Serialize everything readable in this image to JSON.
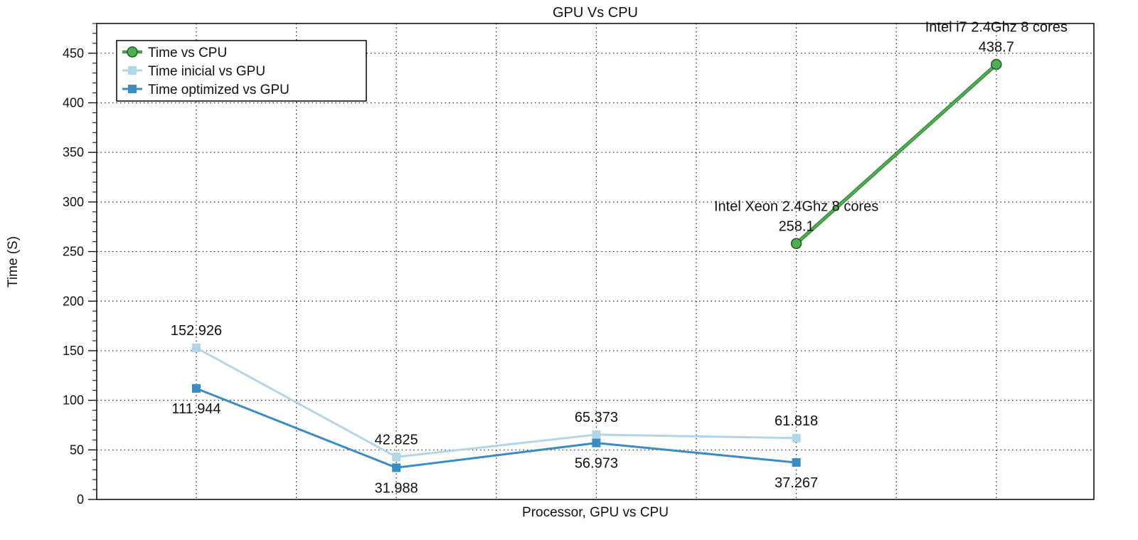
{
  "chart_data": {
    "type": "line",
    "title": "GPU Vs CPU",
    "xlabel": "Processor, GPU vs CPU",
    "ylabel": "Time (S)",
    "ylim": [
      0,
      480
    ],
    "y_ticks": [
      0,
      50,
      100,
      150,
      200,
      250,
      300,
      350,
      400,
      450
    ],
    "y_tick_labels": [
      "0",
      "50",
      "100",
      "150",
      "200",
      "250",
      "300",
      "350",
      "400",
      "450"
    ],
    "grid": true,
    "legend_position": "top-left",
    "x": [
      1,
      2,
      3,
      4,
      5
    ],
    "series": [
      {
        "name": "Time vs CPU",
        "color": "#4caf50",
        "marker": "circle",
        "points": [
          {
            "x": 4,
            "y": 258.1,
            "label": "258.1",
            "annotation": "Intel Xeon 2.4Ghz 8 cores"
          },
          {
            "x": 5,
            "y": 438.7,
            "label": "438.7",
            "annotation": "Intel i7 2.4Ghz 8 cores"
          }
        ]
      },
      {
        "name": "Time inicial vs GPU",
        "color": "#b3d5e8",
        "marker": "square",
        "points": [
          {
            "x": 1,
            "y": 152.926,
            "label": "152.926"
          },
          {
            "x": 2,
            "y": 42.825,
            "label": "42.825"
          },
          {
            "x": 3,
            "y": 65.373,
            "label": "65.373"
          },
          {
            "x": 4,
            "y": 61.818,
            "label": "61.818"
          }
        ]
      },
      {
        "name": "Time optimized vs GPU",
        "color": "#3a8cc4",
        "marker": "square",
        "points": [
          {
            "x": 1,
            "y": 111.944,
            "label": "111.944"
          },
          {
            "x": 2,
            "y": 31.988,
            "label": "31.988"
          },
          {
            "x": 3,
            "y": 56.973,
            "label": "56.973"
          },
          {
            "x": 4,
            "y": 37.267,
            "label": "37.267"
          }
        ]
      }
    ]
  }
}
